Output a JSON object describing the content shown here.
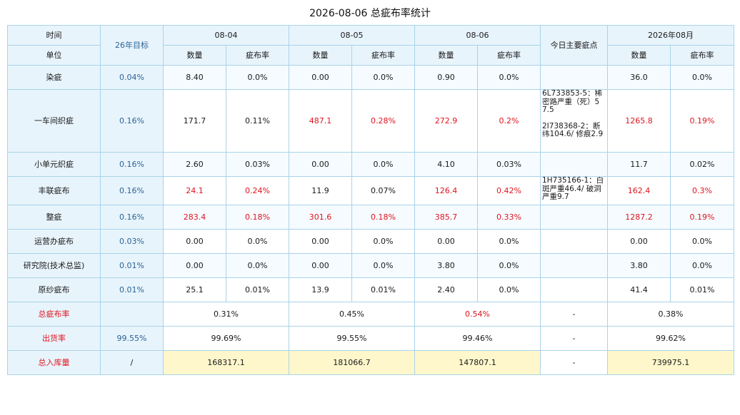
{
  "title": "2026-08-06 总疵布率统计",
  "header": {
    "time_label": "时间",
    "unit_label": "单位",
    "target_label": "26年目标",
    "dates": [
      "08-04",
      "08-05",
      "08-06"
    ],
    "notes_label": "今日主要疵点",
    "month_label": "2026年08月",
    "qty_label": "数量",
    "rate_label": "疵布率"
  },
  "rows": [
    {
      "name": "染疵",
      "target": "0.04%",
      "d1q": "8.40",
      "d1r": "0.0%",
      "d2q": "0.00",
      "d2r": "0.0%",
      "d3q": "0.90",
      "d3r": "0.0%",
      "notes": [],
      "mq": "36.0",
      "mr": "0.0%"
    },
    {
      "name": "一车间织疵",
      "target": "0.16%",
      "d1q": "171.7",
      "d1r": "0.11%",
      "d2q": "487.1",
      "d2r": "0.28%",
      "d3q": "272.9",
      "d3r": "0.2%",
      "notes": [
        "6L733853-5：稀密路严重（死）57.5",
        "2I738368-2：断纬104.6/ 修痕2.9"
      ],
      "mq": "1265.8",
      "mr": "0.19%"
    },
    {
      "name": "小单元织疵",
      "target": "0.16%",
      "d1q": "2.60",
      "d1r": "0.03%",
      "d2q": "0.00",
      "d2r": "0.0%",
      "d3q": "4.10",
      "d3r": "0.03%",
      "notes": [],
      "mq": "11.7",
      "mr": "0.02%"
    },
    {
      "name": "丰联疵布",
      "target": "0.16%",
      "d1q": "24.1",
      "d1r": "0.24%",
      "d2q": "11.9",
      "d2r": "0.07%",
      "d3q": "126.4",
      "d3r": "0.42%",
      "notes": [
        "1H735166-1：白斑严重46.4/ 破洞严重9.7"
      ],
      "mq": "162.4",
      "mr": "0.3%"
    },
    {
      "name": "整疵",
      "target": "0.16%",
      "d1q": "283.4",
      "d1r": "0.18%",
      "d2q": "301.6",
      "d2r": "0.18%",
      "d3q": "385.7",
      "d3r": "0.33%",
      "notes": [],
      "mq": "1287.2",
      "mr": "0.19%"
    },
    {
      "name": "运营办疵布",
      "target": "0.03%",
      "d1q": "0.00",
      "d1r": "0.0%",
      "d2q": "0.00",
      "d2r": "0.0%",
      "d3q": "0.00",
      "d3r": "0.0%",
      "notes": [],
      "mq": "0.00",
      "mr": "0.0%"
    },
    {
      "name": "研究院(技术总监)",
      "target": "0.01%",
      "d1q": "0.00",
      "d1r": "0.0%",
      "d2q": "0.00",
      "d2r": "0.0%",
      "d3q": "3.80",
      "d3r": "0.0%",
      "notes": [],
      "mq": "3.80",
      "mr": "0.0%"
    },
    {
      "name": "原纱疵布",
      "target": "0.01%",
      "d1q": "25.1",
      "d1r": "0.01%",
      "d2q": "13.9",
      "d2r": "0.01%",
      "d3q": "2.40",
      "d3r": "0.0%",
      "notes": [],
      "mq": "41.4",
      "mr": "0.01%"
    }
  ],
  "summary": {
    "total_rate": {
      "label": "总疵布率",
      "target": "",
      "d1": "0.31%",
      "d2": "0.45%",
      "d3": "0.54%",
      "notes": "-",
      "month": "0.38%"
    },
    "shipping": {
      "label": "出货率",
      "target": "99.55%",
      "d1": "99.69%",
      "d2": "99.55%",
      "d3": "99.46%",
      "notes": "-",
      "month": "99.62%"
    },
    "inventory": {
      "label": "总入库量",
      "target": "/",
      "d1": "168317.1",
      "d2": "181066.7",
      "d3": "147807.1",
      "notes": "-",
      "month": "739975.1"
    }
  },
  "colors": {
    "header_bg": "#e8f4fc",
    "border": "#a9d3e8",
    "alert_red": "#e0141e",
    "target_blue": "#2a6496",
    "highlight_yellow": "#fff7cc"
  }
}
